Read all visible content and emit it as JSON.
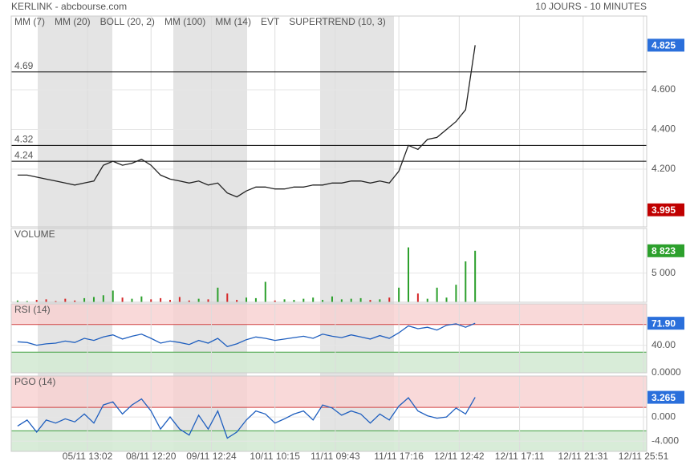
{
  "header": {
    "title": "KERLINK - abcbourse.com",
    "period": "10 JOURS - 10 MINUTES"
  },
  "chart_data": [
    {
      "type": "line",
      "legend": [
        {
          "name": "MM (7)",
          "color": "#2a3cc7"
        },
        {
          "name": "MM (20)",
          "color": "#c02020"
        },
        {
          "name": "BOLL (20, 2)",
          "color": "#f0a050"
        },
        {
          "name": "MM (100)",
          "color": "#2ca02c"
        },
        {
          "name": "MM (14)",
          "color": "#333333"
        },
        {
          "name": "EVT",
          "color": "#111111"
        },
        {
          "name": "SUPERTREND (10, 3)",
          "color": "#b02030"
        }
      ],
      "x": [
        2,
        5,
        8,
        11,
        14,
        17,
        20,
        23,
        26,
        29,
        32,
        35,
        38,
        41,
        44,
        47,
        50,
        53,
        56,
        59,
        62,
        65,
        68,
        71,
        74,
        77,
        80,
        83,
        86,
        89,
        92,
        95,
        98,
        101,
        104,
        107,
        110,
        113,
        116,
        119,
        122,
        125,
        128,
        131,
        134,
        137,
        140,
        143,
        146
      ],
      "series": [
        {
          "color": "#222222",
          "values": [
            4.17,
            4.17,
            4.16,
            4.15,
            4.14,
            4.13,
            4.12,
            4.13,
            4.14,
            4.22,
            4.24,
            4.22,
            4.23,
            4.25,
            4.22,
            4.17,
            4.15,
            4.14,
            4.13,
            4.14,
            4.12,
            4.13,
            4.08,
            4.06,
            4.09,
            4.11,
            4.11,
            4.1,
            4.1,
            4.11,
            4.11,
            4.12,
            4.12,
            4.13,
            4.13,
            4.14,
            4.14,
            4.13,
            4.14,
            4.13,
            4.19,
            4.32,
            4.3,
            4.35,
            4.36,
            4.4,
            4.44,
            4.5,
            4.825
          ]
        }
      ],
      "xlim": [
        0,
        200
      ],
      "xticks": [
        {
          "value": 24,
          "label": "05/11 13:02"
        },
        {
          "value": 44,
          "label": "08/11 12:20"
        },
        {
          "value": 63,
          "label": "09/11 12:24"
        },
        {
          "value": 83,
          "label": "10/11 10:15"
        },
        {
          "value": 102,
          "label": "11/11 09:43"
        },
        {
          "value": 122,
          "label": "11/11 17:16"
        },
        {
          "value": 141,
          "label": "12/11 12:42"
        },
        {
          "value": 160,
          "label": "12/11 17:11"
        },
        {
          "value": 180,
          "label": "12/11 21:31"
        },
        {
          "value": 199,
          "label": "12/11 25:51"
        }
      ],
      "ylim": [
        3.909,
        4.972
      ],
      "yticks": [
        {
          "value": 4.6,
          "label": "4.600"
        },
        {
          "value": 4.4,
          "label": "4.400"
        },
        {
          "value": 4.2,
          "label": "4.200"
        }
      ],
      "levels": [
        4.69,
        4.32,
        4.24
      ],
      "last": {
        "value": 4.825,
        "label": "4.825",
        "color": "#2a6fdb"
      },
      "low": {
        "value": 3.995,
        "label": "3.995",
        "color": "#c00000"
      }
    },
    {
      "type": "bar",
      "title": "VOLUME",
      "title_color": "#2ca02c",
      "up_color": "#2ca02c",
      "down_color": "#d62728",
      "values": [
        300,
        200,
        400,
        500,
        200,
        600,
        300,
        700,
        900,
        1200,
        2000,
        800,
        600,
        1000,
        500,
        700,
        400,
        900,
        300,
        600,
        500,
        2500,
        1500,
        400,
        800,
        700,
        3500,
        300,
        500,
        400,
        600,
        800,
        400,
        1000,
        500,
        600,
        700,
        400,
        500,
        800,
        2500,
        9400,
        1500,
        600,
        2500,
        800,
        3000,
        7000,
        8823
      ],
      "ylim": [
        0,
        12640
      ],
      "yticks": [
        {
          "value": 5000,
          "label": "5 000"
        }
      ],
      "last": {
        "value": 8823,
        "label": "8 823",
        "color": "#2ca02c"
      }
    },
    {
      "type": "line",
      "title": "RSI (14)",
      "title_color": "#2a3cc7",
      "color": "#1f5fbf",
      "values": [
        45,
        44,
        40,
        42,
        43,
        46,
        44,
        50,
        47,
        52,
        55,
        49,
        53,
        56,
        50,
        43,
        46,
        44,
        41,
        47,
        43,
        50,
        38,
        42,
        48,
        52,
        50,
        47,
        49,
        51,
        53,
        50,
        56,
        53,
        51,
        55,
        52,
        49,
        54,
        50,
        58,
        68,
        64,
        66,
        62,
        69,
        71,
        66,
        71.9
      ],
      "ylim": [
        0,
        100
      ],
      "yticks": [
        {
          "value": 40,
          "label": "40.00"
        },
        {
          "value": 0,
          "label": "0.0000"
        }
      ],
      "bands": [
        70,
        30
      ],
      "last": {
        "value": 71.9,
        "label": "71.90",
        "color": "#2a6fdb"
      }
    },
    {
      "type": "line",
      "title": "PGO (14)",
      "title_color": "#2a3cc7",
      "color": "#1f5fbf",
      "values": [
        -1.5,
        -0.5,
        -2.5,
        -0.5,
        -1,
        -0.3,
        -0.8,
        0.5,
        -1,
        2,
        2.5,
        0.5,
        2,
        3,
        1,
        -2,
        0,
        -2,
        -3,
        0.3,
        -2,
        1,
        -3.5,
        -2.5,
        -0.5,
        1,
        0.5,
        -1,
        -0.3,
        0.5,
        1,
        -0.5,
        2,
        1.5,
        0.3,
        1,
        0.5,
        -1,
        0.5,
        -0.5,
        1.8,
        3.2,
        1,
        0.2,
        -0.2,
        0,
        1.5,
        0.5,
        3.265
      ],
      "ylim": [
        -5.7,
        6.8
      ],
      "yticks": [
        {
          "value": 0,
          "label": "0.000"
        },
        {
          "value": -4,
          "label": "-4.000"
        }
      ],
      "bands": [
        1.6,
        -2.3
      ],
      "last": {
        "value": 3.265,
        "label": "3.265",
        "color": "#2a6fdb"
      }
    }
  ]
}
